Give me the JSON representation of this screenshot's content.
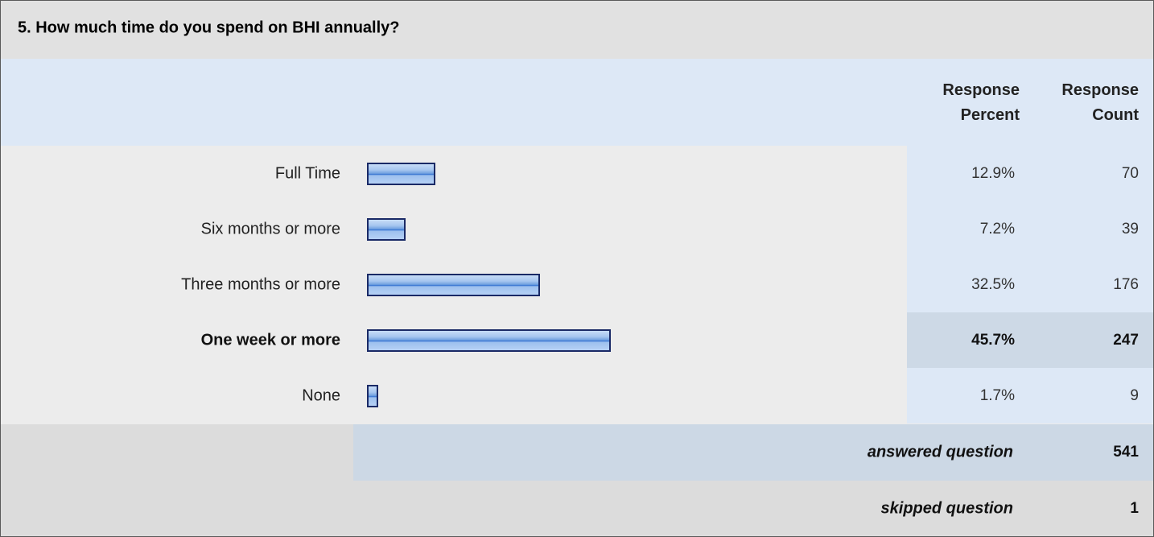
{
  "question": {
    "title": "5. How much time do you spend on BHI annually?"
  },
  "headers": {
    "percent_line1": "Response",
    "percent_line2": "Percent",
    "count_line1": "Response",
    "count_line2": "Count"
  },
  "colors": {
    "bar_border": "#1a2a66",
    "bar_fill": "#6e9fdf",
    "header_bg": "#dde8f6",
    "highlight_bg": "#cdd9e6"
  },
  "rows": [
    {
      "label": "Full Time",
      "percent": "12.9%",
      "count": "70"
    },
    {
      "label": "Six months or more",
      "percent": "7.2%",
      "count": "39"
    },
    {
      "label": "Three months or more",
      "percent": "32.5%",
      "count": "176"
    },
    {
      "label": "One week or more",
      "percent": "45.7%",
      "count": "247"
    },
    {
      "label": "None",
      "percent": "1.7%",
      "count": "9"
    }
  ],
  "summary": {
    "answered_label": "answered question",
    "answered_value": "541",
    "skipped_label": "skipped question",
    "skipped_value": "1"
  },
  "chart_data": {
    "type": "bar",
    "orientation": "horizontal",
    "categories": [
      "Full Time",
      "Six months or more",
      "Three months or more",
      "One week or more",
      "None"
    ],
    "values": [
      12.9,
      7.2,
      32.5,
      45.7,
      1.7
    ],
    "counts": [
      70,
      39,
      176,
      247,
      9
    ],
    "highlighted_category": "One week or more",
    "title": "5. How much time do you spend on BHI annually?"
  }
}
